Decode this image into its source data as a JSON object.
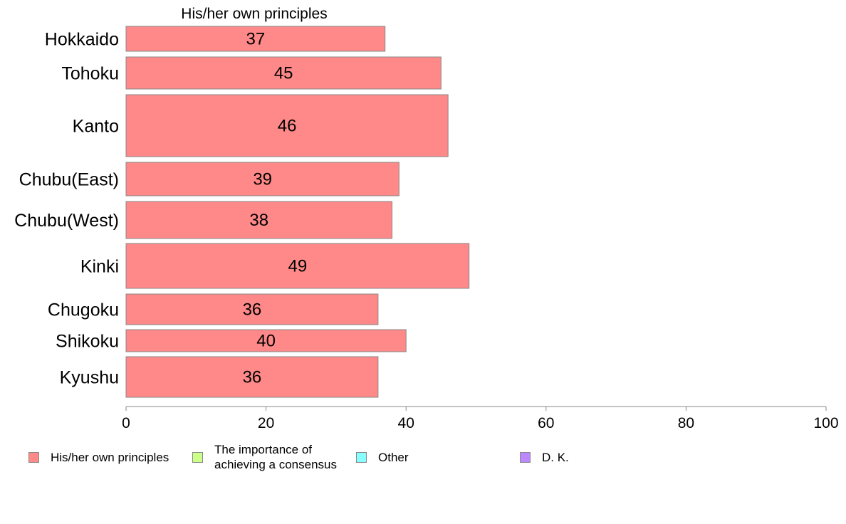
{
  "chart_data": {
    "type": "bar",
    "orientation": "horizontal",
    "title": "His/her own principles",
    "categories": [
      "Hokkaido",
      "Tohoku",
      "Kanto",
      "Chubu(East)",
      "Chubu(West)",
      "Kinki",
      "Chugoku",
      "Shikoku",
      "Kyushu"
    ],
    "series": [
      {
        "name": "His/her own principles",
        "color": "#ff8888",
        "values": [
          37,
          45,
          46,
          39,
          38,
          49,
          36,
          40,
          36
        ]
      }
    ],
    "xlim": [
      0,
      100
    ],
    "xticks": [
      0,
      20,
      40,
      60,
      80,
      100
    ],
    "grid": false,
    "legend": {
      "position": "bottom",
      "items": [
        {
          "label": "His/her own principles",
          "color": "#ff8888"
        },
        {
          "label": "The importance of achieving a consensus",
          "color": "#ccff88"
        },
        {
          "label": "Other",
          "color": "#88ffff"
        },
        {
          "label": "D. K.",
          "color": "#bb88ff"
        }
      ]
    }
  }
}
